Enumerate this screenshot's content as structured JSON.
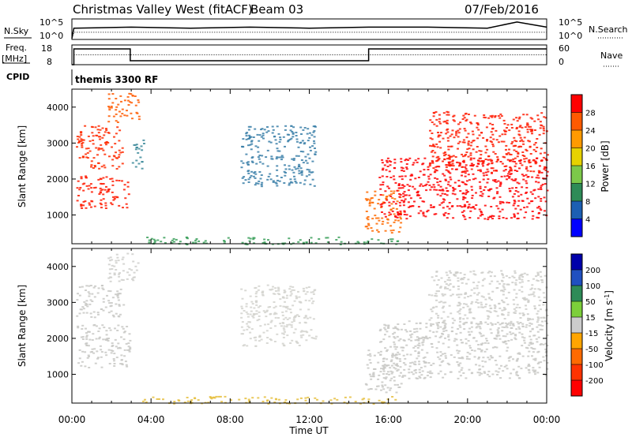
{
  "header": {
    "title": "Christmas Valley West (fitACF)",
    "beam": "Beam 03",
    "date": "07/Feb/2016"
  },
  "mode_label": "themis 3300 RF",
  "chart_data": [
    {
      "name": "N.Sky / N.Search",
      "type": "line",
      "left_label": "N.Sky",
      "right_label": "N.Search",
      "left_ticks": [
        "10^5",
        "10^0"
      ],
      "right_ticks": [
        "10^5",
        "10^0"
      ],
      "x": [
        0,
        0.1,
        3,
        6,
        9,
        12,
        15,
        18,
        21,
        22.5,
        24
      ],
      "sky": [
        0.05,
        0.55,
        0.6,
        0.55,
        0.6,
        0.55,
        0.6,
        0.6,
        0.55,
        0.85,
        0.6
      ],
      "search": [
        0.05,
        0.35,
        0.35,
        0.35,
        0.35,
        0.35,
        0.35,
        0.35,
        0.35,
        0.35,
        0.35
      ]
    },
    {
      "name": "Freq / Nave",
      "type": "line",
      "left_label_1": "Freq.",
      "left_label_2": "[MHz]",
      "right_label": "Nave",
      "left_ticks": [
        "18",
        "8"
      ],
      "right_ticks": [
        "60",
        "0"
      ],
      "freq_x": [
        0,
        0.1,
        0.1,
        2.95,
        2.95,
        15,
        15,
        24
      ],
      "freq": [
        0,
        0,
        0.8,
        0.8,
        0.2,
        0.2,
        0.8,
        0.8
      ],
      "nave_y": 0.5
    },
    {
      "name": "CPID",
      "label": "CPID"
    },
    {
      "name": "Power",
      "type": "heatmap",
      "ylabel": "Slant Range [km]",
      "yticks": [
        1000,
        2000,
        3000,
        4000
      ],
      "ylim": [
        200,
        4500
      ],
      "colorbar": {
        "label": "Power [dB]",
        "ticks": [
          "4",
          "8",
          "12",
          "16",
          "20",
          "24",
          "28"
        ],
        "colors": [
          "#0000ff",
          "#1c5fb3",
          "#2e8b57",
          "#7cc94a",
          "#e6d200",
          "#ff9a00",
          "#ff5a00",
          "#ff0000"
        ]
      },
      "regions": [
        {
          "t0": 0.2,
          "t1": 2.9,
          "r0": 1200,
          "r1": 2100,
          "color": "#ff1a00"
        },
        {
          "t0": 0.2,
          "t1": 2.6,
          "r0": 2300,
          "r1": 3500,
          "color": "#ff2a00"
        },
        {
          "t0": 1.8,
          "t1": 3.4,
          "r0": 3600,
          "r1": 4400,
          "color": "#ff5a00"
        },
        {
          "t0": 3.0,
          "t1": 3.6,
          "r0": 2300,
          "r1": 3100,
          "color": "#3c8a9a"
        },
        {
          "t0": 8.5,
          "t1": 12.3,
          "r0": 1800,
          "r1": 3500,
          "color": "#3a7fa8"
        },
        {
          "t0": 14.8,
          "t1": 16.6,
          "r0": 500,
          "r1": 1700,
          "color": "#ff6a00"
        },
        {
          "t0": 15.5,
          "t1": 24,
          "r0": 900,
          "r1": 2600,
          "color": "#ff0000"
        },
        {
          "t0": 18.0,
          "t1": 24,
          "r0": 2200,
          "r1": 3900,
          "color": "#ff1a00"
        },
        {
          "t0": 3.5,
          "t1": 16.5,
          "r0": 200,
          "r1": 400,
          "color": "#3aa05a"
        }
      ]
    },
    {
      "name": "Velocity",
      "type": "heatmap",
      "ylabel": "Slant Range [km]",
      "xlabel": "Time UT",
      "yticks": [
        1000,
        2000,
        3000,
        4000
      ],
      "ylim": [
        200,
        4500
      ],
      "xticks": [
        "00:00",
        "04:00",
        "08:00",
        "12:00",
        "16:00",
        "20:00",
        "00:00"
      ],
      "colorbar": {
        "label": "Velocity [m s^-1]",
        "ticks": [
          "200",
          "100",
          "50",
          "15",
          "-15",
          "-50",
          "-100",
          "-200"
        ],
        "colors": [
          "#0000aa",
          "#2050c0",
          "#2e8b57",
          "#7ccf3a",
          "#cccccc",
          "#ffa500",
          "#ff6a00",
          "#ff3300",
          "#ff0000"
        ]
      },
      "regions": [
        {
          "t0": 0.2,
          "t1": 2.9,
          "r0": 1200,
          "r1": 2400,
          "color": "#c8c8c4"
        },
        {
          "t0": 0.2,
          "t1": 2.6,
          "r0": 2600,
          "r1": 3500,
          "color": "#c8c8c4"
        },
        {
          "t0": 1.8,
          "t1": 3.4,
          "r0": 3600,
          "r1": 4400,
          "color": "#cfcfcb"
        },
        {
          "t0": 8.5,
          "t1": 12.3,
          "r0": 1800,
          "r1": 3500,
          "color": "#d2d2ce"
        },
        {
          "t0": 14.8,
          "t1": 16.6,
          "r0": 500,
          "r1": 1700,
          "color": "#c8c8c4"
        },
        {
          "t0": 15.5,
          "t1": 24,
          "r0": 900,
          "r1": 2500,
          "color": "#c8c8c4"
        },
        {
          "t0": 18.0,
          "t1": 24,
          "r0": 2300,
          "r1": 3900,
          "color": "#cdcdc9"
        },
        {
          "t0": 3.5,
          "t1": 16.5,
          "r0": 200,
          "r1": 400,
          "color": "#e6c040"
        }
      ]
    }
  ]
}
